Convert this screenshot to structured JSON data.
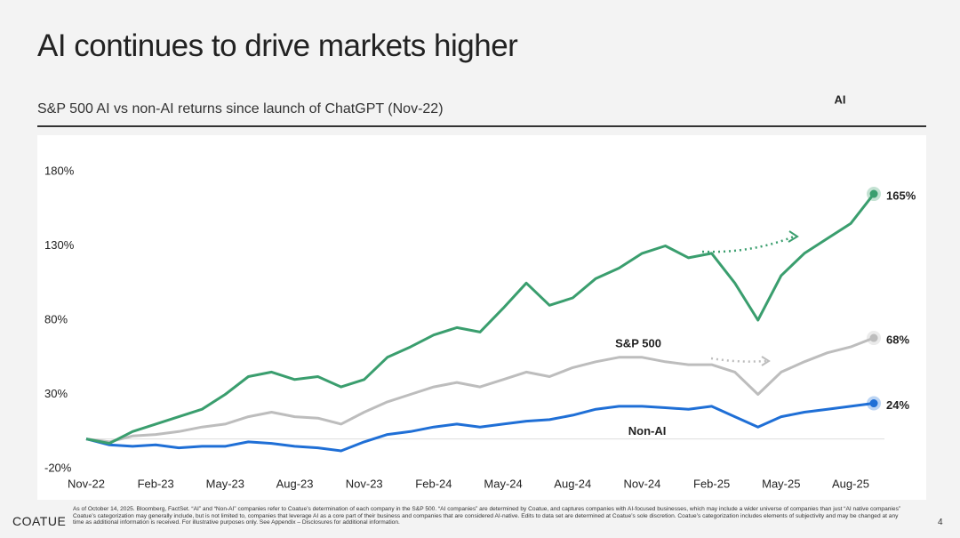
{
  "title": "AI continues to drive markets higher",
  "subtitle": "S&P 500 AI vs non-AI returns since launch of ChatGPT (Nov-22)",
  "footnote": "As of October 14, 2025. Bloomberg, FactSet. “AI” and “Non-AI” companies refer to Coatue’s determination of each company in the S&P 500. “AI companies” are determined by Coatue, and captures companies with AI-focused businesses, which may include a wider universe of companies than just “AI native companies” Coatue’s categorization may generally include, but is not limited to, companies that leverage AI as a core part of their business and companies that are considered AI-native. Edits to data set are determined at Coatue’s sole discretion. Coatue’s categorization includes elements of subjectivity and may be changed at any time as additional information is received. For illustrative purposes only. See Appendix – Disclosures for additional information.",
  "brand": "COATUE",
  "page_number": "4",
  "chart_data": {
    "type": "line",
    "categories": [
      "Nov-22",
      null,
      null,
      "Feb-23",
      null,
      null,
      "May-23",
      null,
      null,
      "Aug-23",
      null,
      null,
      "Nov-23",
      null,
      null,
      "Feb-24",
      null,
      null,
      "May-24",
      null,
      null,
      "Aug-24",
      null,
      null,
      "Nov-24",
      null,
      null,
      "Feb-25",
      null,
      null,
      "May-25",
      null,
      null,
      "Aug-25",
      null
    ],
    "ylim": [
      -20,
      180
    ],
    "yticks": [
      {
        "value": -20,
        "label": "-20%"
      },
      {
        "value": 30,
        "label": "30%"
      },
      {
        "value": 80,
        "label": "80%"
      },
      {
        "value": 130,
        "label": "130%"
      },
      {
        "value": 180,
        "label": "180%"
      }
    ],
    "series": [
      {
        "name": "AI",
        "color": "#3a9e6e",
        "values": [
          0,
          -3,
          5,
          10,
          15,
          20,
          30,
          42,
          45,
          40,
          42,
          35,
          40,
          55,
          62,
          70,
          75,
          72,
          88,
          105,
          90,
          95,
          108,
          115,
          125,
          130,
          122,
          125,
          105,
          80,
          110,
          125,
          135,
          145,
          165
        ],
        "value_labels": [
          null,
          null,
          null,
          null,
          null,
          null,
          null,
          null,
          null,
          null,
          null,
          null,
          null,
          null,
          null,
          null,
          null,
          null,
          null,
          null,
          null,
          null,
          null,
          null,
          null,
          null,
          null,
          null,
          null,
          null,
          null,
          null,
          null,
          null,
          "165%"
        ]
      },
      {
        "name": "S&P 500",
        "color": "#bdbdbd",
        "values": [
          0,
          -2,
          2,
          3,
          5,
          8,
          10,
          15,
          18,
          15,
          14,
          10,
          18,
          25,
          30,
          35,
          38,
          35,
          40,
          45,
          42,
          48,
          52,
          55,
          55,
          52,
          50,
          50,
          45,
          30,
          45,
          52,
          58,
          62,
          68
        ],
        "value_labels": [
          null,
          null,
          null,
          null,
          null,
          null,
          null,
          null,
          null,
          null,
          null,
          null,
          null,
          null,
          null,
          null,
          null,
          null,
          null,
          null,
          null,
          null,
          null,
          null,
          null,
          null,
          null,
          null,
          null,
          null,
          null,
          null,
          null,
          null,
          "68%"
        ]
      },
      {
        "name": "Non-AI",
        "color": "#1f6fd6",
        "values": [
          0,
          -4,
          -5,
          -4,
          -6,
          -5,
          -5,
          -2,
          -3,
          -5,
          -6,
          -8,
          -2,
          3,
          5,
          8,
          10,
          8,
          10,
          12,
          13,
          16,
          20,
          22,
          22,
          21,
          20,
          22,
          15,
          8,
          15,
          18,
          20,
          22,
          24
        ],
        "value_labels": [
          null,
          null,
          null,
          null,
          null,
          null,
          null,
          null,
          null,
          null,
          null,
          null,
          null,
          null,
          null,
          null,
          null,
          null,
          null,
          null,
          null,
          null,
          null,
          null,
          null,
          null,
          null,
          null,
          null,
          null,
          null,
          null,
          null,
          null,
          "24%"
        ]
      }
    ]
  }
}
